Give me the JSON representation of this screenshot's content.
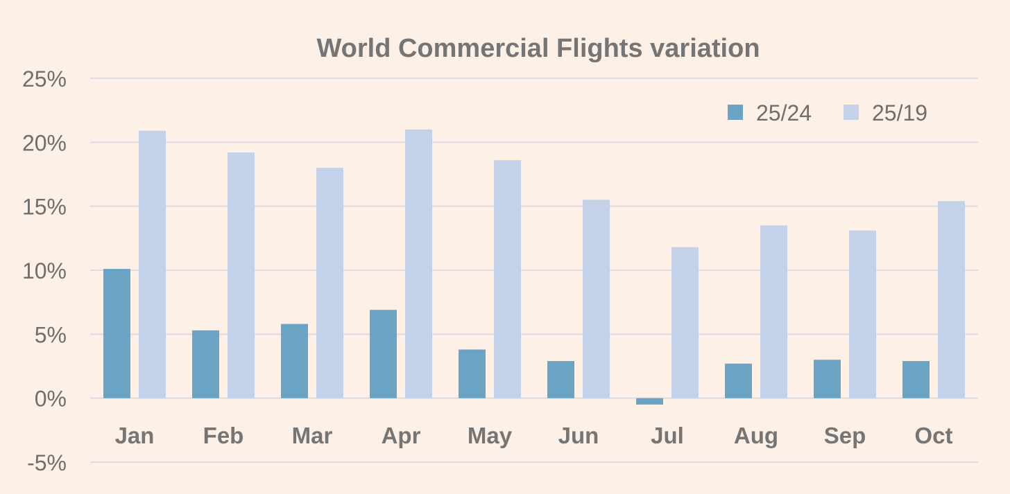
{
  "chart_data": {
    "type": "bar",
    "title": "World Commercial Flights variation",
    "xlabel": "",
    "ylabel": "",
    "categories": [
      "Jan",
      "Feb",
      "Mar",
      "Apr",
      "May",
      "Jun",
      "Jul",
      "Aug",
      "Sep",
      "Oct"
    ],
    "series": [
      {
        "name": "25/24",
        "color": "#6aa3c4",
        "values": [
          10.1,
          5.3,
          5.8,
          6.9,
          3.8,
          2.9,
          -0.5,
          2.7,
          3.0,
          2.9
        ]
      },
      {
        "name": "25/19",
        "color": "#c3d1e9",
        "values": [
          20.9,
          19.2,
          18.0,
          21.0,
          18.6,
          15.5,
          11.8,
          13.5,
          13.1,
          15.4
        ]
      }
    ],
    "ylim": [
      -5,
      25
    ],
    "yticks": [
      -5,
      0,
      5,
      10,
      15,
      20,
      25
    ],
    "ytick_labels": [
      "-5%",
      "0%",
      "5%",
      "10%",
      "15%",
      "20%",
      "25%"
    ],
    "grid": true,
    "legend_position": "top-right"
  }
}
